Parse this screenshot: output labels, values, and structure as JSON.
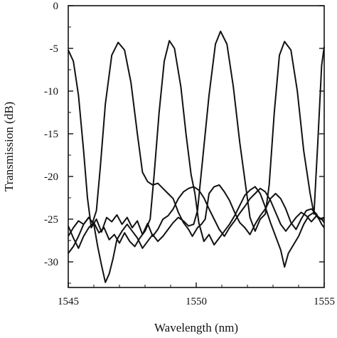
{
  "chart_data": {
    "type": "line",
    "title": "",
    "xlabel": "Wavelength (nm)",
    "ylabel": "Transmission (dB)",
    "xlim": [
      1545,
      1555
    ],
    "ylim": [
      -33,
      0
    ],
    "xticks": [
      1545,
      1550,
      1555
    ],
    "yticks": [
      0,
      -5,
      -10,
      -15,
      -20,
      -25,
      -30
    ],
    "grid": false,
    "legend": "none",
    "series": [
      {
        "color": "#111111",
        "points": [
          [
            1545.0,
            -5.2
          ],
          [
            1545.2,
            -6.5
          ],
          [
            1545.4,
            -10.5
          ],
          [
            1545.6,
            -17.0
          ],
          [
            1545.75,
            -22.5
          ],
          [
            1545.9,
            -26.0
          ],
          [
            1546.1,
            -25.0
          ],
          [
            1546.3,
            -26.5
          ],
          [
            1546.5,
            -24.8
          ],
          [
            1546.7,
            -25.3
          ],
          [
            1546.9,
            -24.5
          ],
          [
            1547.1,
            -25.6
          ],
          [
            1547.3,
            -24.8
          ],
          [
            1547.5,
            -26.0
          ],
          [
            1547.7,
            -25.2
          ],
          [
            1547.9,
            -26.8
          ],
          [
            1548.1,
            -25.5
          ],
          [
            1548.3,
            -27.0
          ],
          [
            1548.5,
            -26.2
          ],
          [
            1548.7,
            -25.0
          ],
          [
            1548.9,
            -24.6
          ],
          [
            1549.1,
            -23.8
          ],
          [
            1549.3,
            -22.6
          ],
          [
            1549.5,
            -21.8
          ],
          [
            1549.7,
            -21.4
          ],
          [
            1549.9,
            -21.2
          ],
          [
            1550.1,
            -21.6
          ],
          [
            1550.3,
            -22.5
          ],
          [
            1550.5,
            -23.8
          ],
          [
            1550.7,
            -25.0
          ],
          [
            1550.9,
            -26.2
          ],
          [
            1551.1,
            -27.0
          ],
          [
            1551.3,
            -26.0
          ],
          [
            1551.5,
            -25.2
          ],
          [
            1551.7,
            -24.3
          ],
          [
            1551.9,
            -23.5
          ],
          [
            1552.1,
            -22.6
          ],
          [
            1552.3,
            -22.0
          ],
          [
            1552.5,
            -21.4
          ],
          [
            1552.7,
            -21.8
          ],
          [
            1552.9,
            -22.8
          ],
          [
            1553.1,
            -24.2
          ],
          [
            1553.3,
            -25.6
          ],
          [
            1553.5,
            -26.4
          ],
          [
            1553.7,
            -25.6
          ],
          [
            1553.9,
            -24.8
          ],
          [
            1554.1,
            -24.2
          ],
          [
            1554.3,
            -24.6
          ],
          [
            1554.5,
            -25.3
          ],
          [
            1554.7,
            -24.6
          ],
          [
            1554.9,
            -25.0
          ],
          [
            1555.0,
            -25.4
          ]
        ]
      },
      {
        "color": "#111111",
        "points": [
          [
            1545.0,
            -27.0
          ],
          [
            1545.2,
            -26.0
          ],
          [
            1545.4,
            -25.2
          ],
          [
            1545.6,
            -25.6
          ],
          [
            1545.8,
            -24.8
          ],
          [
            1545.95,
            -25.4
          ],
          [
            1546.1,
            -24.0
          ],
          [
            1546.25,
            -19.0
          ],
          [
            1546.45,
            -11.5
          ],
          [
            1546.7,
            -5.8
          ],
          [
            1546.95,
            -4.3
          ],
          [
            1547.2,
            -5.2
          ],
          [
            1547.45,
            -9.0
          ],
          [
            1547.7,
            -15.0
          ],
          [
            1547.9,
            -19.5
          ],
          [
            1548.1,
            -20.6
          ],
          [
            1548.3,
            -21.0
          ],
          [
            1548.5,
            -20.8
          ],
          [
            1548.7,
            -21.4
          ],
          [
            1548.9,
            -22.0
          ],
          [
            1549.1,
            -22.6
          ],
          [
            1549.3,
            -24.2
          ],
          [
            1549.5,
            -25.4
          ],
          [
            1549.7,
            -26.2
          ],
          [
            1549.85,
            -27.0
          ],
          [
            1550.05,
            -26.0
          ],
          [
            1550.2,
            -25.6
          ],
          [
            1550.35,
            -25.0
          ],
          [
            1550.5,
            -22.0
          ],
          [
            1550.7,
            -21.2
          ],
          [
            1550.9,
            -21.0
          ],
          [
            1551.1,
            -21.8
          ],
          [
            1551.3,
            -22.8
          ],
          [
            1551.5,
            -24.2
          ],
          [
            1551.7,
            -25.4
          ],
          [
            1551.9,
            -26.0
          ],
          [
            1552.1,
            -26.8
          ],
          [
            1552.3,
            -25.6
          ],
          [
            1552.5,
            -24.6
          ],
          [
            1552.7,
            -23.8
          ],
          [
            1552.9,
            -22.6
          ],
          [
            1553.1,
            -22.0
          ],
          [
            1553.3,
            -22.6
          ],
          [
            1553.5,
            -23.8
          ],
          [
            1553.7,
            -25.4
          ],
          [
            1553.9,
            -26.2
          ],
          [
            1554.1,
            -25.0
          ],
          [
            1554.3,
            -24.0
          ],
          [
            1554.5,
            -23.8
          ],
          [
            1554.7,
            -24.4
          ],
          [
            1554.9,
            -25.6
          ],
          [
            1555.0,
            -26.0
          ]
        ]
      },
      {
        "color": "#111111",
        "points": [
          [
            1545.0,
            -25.8
          ],
          [
            1545.2,
            -27.2
          ],
          [
            1545.4,
            -28.4
          ],
          [
            1545.6,
            -27.0
          ],
          [
            1545.8,
            -26.0
          ],
          [
            1546.0,
            -25.4
          ],
          [
            1546.2,
            -26.6
          ],
          [
            1546.4,
            -26.0
          ],
          [
            1546.6,
            -27.4
          ],
          [
            1546.8,
            -26.8
          ],
          [
            1547.0,
            -27.8
          ],
          [
            1547.2,
            -26.6
          ],
          [
            1547.4,
            -27.6
          ],
          [
            1547.6,
            -28.2
          ],
          [
            1547.8,
            -27.2
          ],
          [
            1548.0,
            -26.4
          ],
          [
            1548.2,
            -25.0
          ],
          [
            1548.35,
            -20.0
          ],
          [
            1548.55,
            -12.5
          ],
          [
            1548.75,
            -6.5
          ],
          [
            1548.95,
            -4.1
          ],
          [
            1549.15,
            -5.0
          ],
          [
            1549.4,
            -9.5
          ],
          [
            1549.6,
            -15.0
          ],
          [
            1549.8,
            -19.8
          ],
          [
            1549.95,
            -22.0
          ],
          [
            1550.1,
            -25.4
          ],
          [
            1550.3,
            -27.6
          ],
          [
            1550.5,
            -26.8
          ],
          [
            1550.7,
            -28.0
          ],
          [
            1550.9,
            -27.2
          ],
          [
            1551.1,
            -26.4
          ],
          [
            1551.3,
            -25.6
          ],
          [
            1551.5,
            -24.6
          ],
          [
            1551.7,
            -23.4
          ],
          [
            1551.9,
            -22.2
          ],
          [
            1552.1,
            -21.6
          ],
          [
            1552.3,
            -21.2
          ],
          [
            1552.5,
            -22.0
          ],
          [
            1552.7,
            -23.6
          ],
          [
            1552.9,
            -25.4
          ],
          [
            1553.1,
            -27.0
          ],
          [
            1553.3,
            -28.6
          ],
          [
            1553.45,
            -30.6
          ],
          [
            1553.6,
            -29.0
          ],
          [
            1553.8,
            -28.0
          ],
          [
            1554.0,
            -27.0
          ],
          [
            1554.2,
            -25.6
          ],
          [
            1554.4,
            -24.6
          ],
          [
            1554.6,
            -24.2
          ],
          [
            1554.8,
            -25.0
          ],
          [
            1555.0,
            -24.8
          ]
        ]
      },
      {
        "color": "#111111",
        "points": [
          [
            1545.0,
            -29.0
          ],
          [
            1545.2,
            -28.2
          ],
          [
            1545.4,
            -27.0
          ],
          [
            1545.6,
            -25.6
          ],
          [
            1545.8,
            -24.8
          ],
          [
            1546.0,
            -25.6
          ],
          [
            1546.15,
            -28.2
          ],
          [
            1546.3,
            -30.4
          ],
          [
            1546.45,
            -32.4
          ],
          [
            1546.6,
            -31.4
          ],
          [
            1546.75,
            -29.6
          ],
          [
            1546.9,
            -27.4
          ],
          [
            1547.1,
            -26.4
          ],
          [
            1547.3,
            -25.6
          ],
          [
            1547.5,
            -26.4
          ],
          [
            1547.7,
            -27.2
          ],
          [
            1547.9,
            -28.4
          ],
          [
            1548.1,
            -27.6
          ],
          [
            1548.3,
            -26.8
          ],
          [
            1548.5,
            -27.6
          ],
          [
            1548.7,
            -27.0
          ],
          [
            1548.9,
            -26.2
          ],
          [
            1549.1,
            -25.4
          ],
          [
            1549.3,
            -24.8
          ],
          [
            1549.5,
            -25.2
          ],
          [
            1549.7,
            -25.8
          ],
          [
            1549.9,
            -25.6
          ],
          [
            1550.05,
            -24.0
          ],
          [
            1550.25,
            -18.0
          ],
          [
            1550.5,
            -10.5
          ],
          [
            1550.75,
            -4.5
          ],
          [
            1550.95,
            -3.0
          ],
          [
            1551.2,
            -4.5
          ],
          [
            1551.45,
            -9.5
          ],
          [
            1551.7,
            -16.0
          ],
          [
            1551.95,
            -21.5
          ],
          [
            1552.1,
            -24.8
          ],
          [
            1552.3,
            -26.4
          ],
          [
            1552.5,
            -25.0
          ],
          [
            1552.7,
            -24.4
          ],
          [
            1552.85,
            -21.0
          ],
          [
            1553.05,
            -12.5
          ],
          [
            1553.25,
            -5.8
          ],
          [
            1553.45,
            -4.2
          ],
          [
            1553.7,
            -5.2
          ],
          [
            1553.95,
            -10.0
          ],
          [
            1554.2,
            -17.0
          ],
          [
            1554.45,
            -22.0
          ],
          [
            1554.6,
            -24.4
          ],
          [
            1554.75,
            -16.0
          ],
          [
            1554.9,
            -7.0
          ],
          [
            1555.0,
            -4.8
          ]
        ]
      }
    ]
  }
}
